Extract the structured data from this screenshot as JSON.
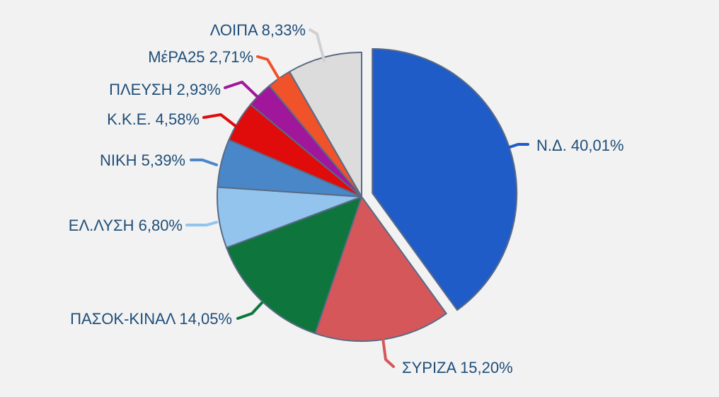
{
  "chart_data": {
    "type": "pie",
    "title": "",
    "start_angle_deg": 0,
    "direction": "clockwise",
    "exploded": [
      "Ν.Δ."
    ],
    "slice_border_color": "#5a6a85",
    "label_text_color": "#1f4e79",
    "slices": [
      {
        "label": "Ν.Δ.",
        "value": 40.01,
        "display": "Ν.Δ. 40,01%",
        "color": "#1f5cc8"
      },
      {
        "label": "ΣΥΡΙΖΑ",
        "value": 15.2,
        "display": "ΣΥΡΙΖΑ 15,20%",
        "color": "#d6575a"
      },
      {
        "label": "ΠΑΣΟΚ-ΚΙΝΑΛ",
        "value": 14.05,
        "display": "ΠΑΣΟΚ-ΚΙΝΑΛ 14,05%",
        "color": "#0e763c"
      },
      {
        "label": "ΕΛ.ΛΥΣΗ",
        "value": 6.8,
        "display": "ΕΛ.ΛΥΣΗ 6,80%",
        "color": "#92c4ee"
      },
      {
        "label": "ΝΙΚΗ",
        "value": 5.39,
        "display": "ΝΙΚΗ 5,39%",
        "color": "#4a87c8"
      },
      {
        "label": "Κ.Κ.Ε.",
        "value": 4.58,
        "display": "Κ.Κ.Ε. 4,58%",
        "color": "#e00b0b"
      },
      {
        "label": "ΠΛΕΥΣΗ",
        "value": 2.93,
        "display": "ΠΛΕΥΣΗ 2,93%",
        "color": "#a0179b"
      },
      {
        "label": "ΜέΡΑ25",
        "value": 2.71,
        "display": "ΜέΡΑ25 2,71%",
        "color": "#f0522a"
      },
      {
        "label": "ΛΟΙΠΑ",
        "value": 8.33,
        "display": "ΛΟΙΠΑ 8,33%",
        "color": "#dcdcdc"
      }
    ]
  }
}
